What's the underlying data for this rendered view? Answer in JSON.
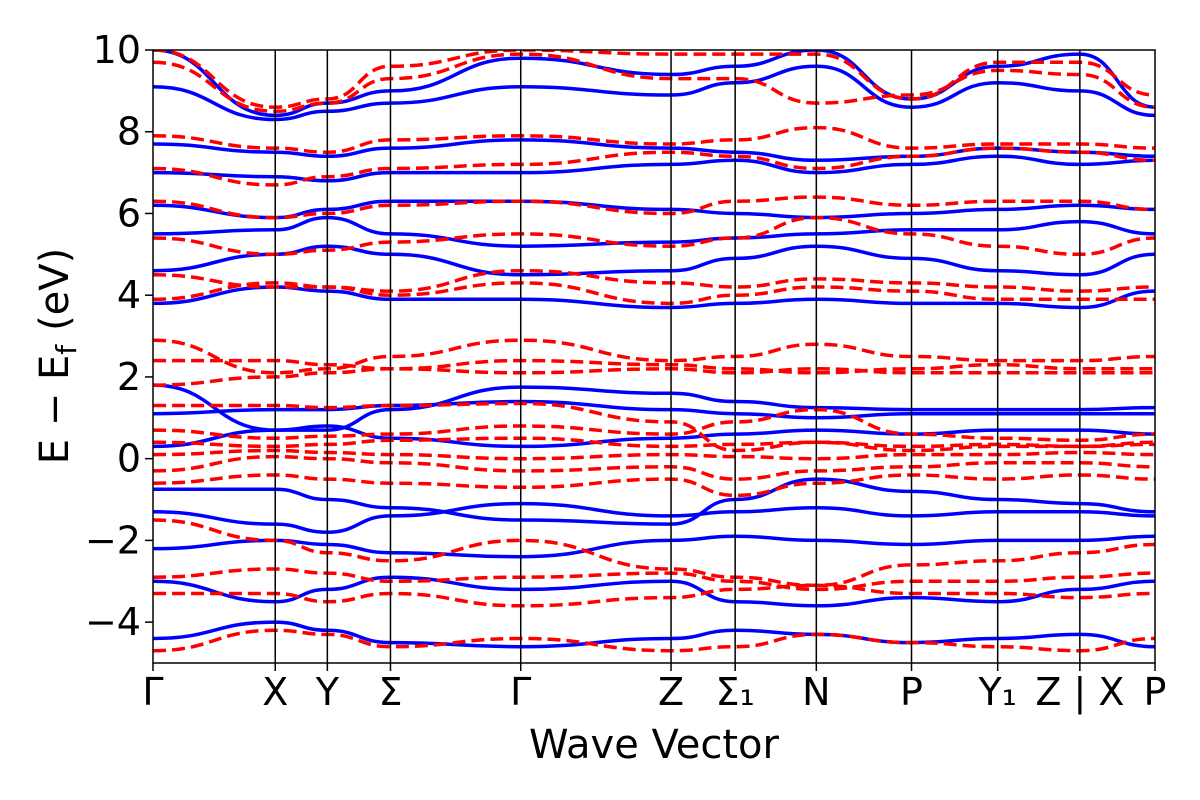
{
  "chart_data": {
    "type": "line",
    "title": "",
    "xlabel": "Wave Vector",
    "ylabel": "E − E",
    "ylabel_subscript": "f",
    "ylabel_unit": "(eV)",
    "ylim": [
      -5,
      10
    ],
    "yticks": [
      -4,
      -2,
      0,
      2,
      4,
      6,
      8,
      10
    ],
    "ytick_labels": [
      "−4",
      "−2",
      "0",
      "2",
      "4",
      "6",
      "8",
      "10"
    ],
    "grid": false,
    "legend": "none",
    "xlim": [
      0,
      1
    ],
    "kpoints": [
      {
        "label": "Γ",
        "x": 0.0
      },
      {
        "label": "X",
        "x": 0.122
      },
      {
        "label": "Y",
        "x": 0.174
      },
      {
        "label": "Σ",
        "x": 0.237
      },
      {
        "label": "Γ",
        "x": 0.367
      },
      {
        "label": "Z",
        "x": 0.517
      },
      {
        "label": "Σ₁",
        "x": 0.581
      },
      {
        "label": "N",
        "x": 0.662
      },
      {
        "label": "P",
        "x": 0.757
      },
      {
        "label": "Y₁",
        "x": 0.843
      },
      {
        "label": "Z | X",
        "x": 0.925
      },
      {
        "label": "P",
        "x": 1.0
      }
    ],
    "colors": {
      "solid": "#0000ff",
      "dashed": "#ff0000"
    },
    "series": [
      {
        "style": "solid",
        "y": [
          -2.2,
          -2.0,
          -2.1,
          -2.3,
          -2.4,
          -2.0,
          -1.9,
          -2.0,
          -2.1,
          -2.0,
          -2.0,
          -1.9
        ]
      },
      {
        "style": "solid",
        "y": [
          -1.3,
          -1.6,
          -1.8,
          -1.4,
          -1.1,
          -1.4,
          -1.3,
          -1.2,
          -1.4,
          -1.3,
          -1.3,
          -1.4
        ]
      },
      {
        "style": "solid",
        "y": [
          -0.75,
          -0.75,
          -1.0,
          -1.2,
          -1.5,
          -1.6,
          -1.0,
          -0.5,
          -0.8,
          -1.0,
          -1.1,
          -1.3
        ]
      },
      {
        "style": "solid",
        "y": [
          0.3,
          0.7,
          0.8,
          0.5,
          0.3,
          0.5,
          0.6,
          0.7,
          0.6,
          0.7,
          0.7,
          0.6
        ]
      },
      {
        "style": "solid",
        "y": [
          1.1,
          1.2,
          1.2,
          1.3,
          1.4,
          1.2,
          1.1,
          1.0,
          1.1,
          1.1,
          1.1,
          1.1
        ]
      },
      {
        "style": "solid",
        "y": [
          1.8,
          0.7,
          0.7,
          1.2,
          1.75,
          1.6,
          1.4,
          1.25,
          1.2,
          1.2,
          1.2,
          1.25
        ]
      },
      {
        "style": "solid",
        "y": [
          -3.0,
          -3.5,
          -3.2,
          -2.9,
          -3.2,
          -3.0,
          -3.5,
          -3.6,
          -3.4,
          -3.5,
          -3.2,
          -3.0
        ]
      },
      {
        "style": "solid",
        "y": [
          -4.4,
          -4.0,
          -4.2,
          -4.5,
          -4.6,
          -4.4,
          -4.2,
          -4.3,
          -4.5,
          -4.4,
          -4.3,
          -4.6
        ]
      },
      {
        "style": "solid",
        "y": [
          3.8,
          4.2,
          4.1,
          3.9,
          3.9,
          3.7,
          3.8,
          3.9,
          3.8,
          3.8,
          3.7,
          4.1
        ]
      },
      {
        "style": "solid",
        "y": [
          4.6,
          5.0,
          5.2,
          5.0,
          4.5,
          4.6,
          4.9,
          5.2,
          4.9,
          4.6,
          4.5,
          5.0
        ]
      },
      {
        "style": "solid",
        "y": [
          5.5,
          5.6,
          5.9,
          5.5,
          5.2,
          5.3,
          5.4,
          5.5,
          5.6,
          5.6,
          5.8,
          5.5
        ]
      },
      {
        "style": "solid",
        "y": [
          6.2,
          5.9,
          6.1,
          6.3,
          6.3,
          6.1,
          6.0,
          5.9,
          6.0,
          6.1,
          6.2,
          6.1
        ]
      },
      {
        "style": "solid",
        "y": [
          7.0,
          6.9,
          6.8,
          7.0,
          7.0,
          7.2,
          7.3,
          7.0,
          7.2,
          7.4,
          7.2,
          7.3
        ]
      },
      {
        "style": "solid",
        "y": [
          7.7,
          7.5,
          7.4,
          7.6,
          7.8,
          7.6,
          7.5,
          7.3,
          7.4,
          7.6,
          7.5,
          7.4
        ]
      },
      {
        "style": "solid",
        "y": [
          9.1,
          8.3,
          8.5,
          8.7,
          9.1,
          8.9,
          9.2,
          9.6,
          8.6,
          9.2,
          9.0,
          8.4
        ]
      },
      {
        "style": "solid",
        "y": [
          10.0,
          8.4,
          8.7,
          9.0,
          9.8,
          9.4,
          9.6,
          10.0,
          8.8,
          9.6,
          9.9,
          8.6
        ]
      },
      {
        "style": "dashed",
        "y": [
          0.1,
          0.2,
          0.15,
          0.1,
          0.0,
          0.1,
          0.05,
          0.0,
          0.1,
          0.1,
          0.15,
          0.1
        ]
      },
      {
        "style": "dashed",
        "y": [
          -0.3,
          0.05,
          0.0,
          -0.1,
          -0.3,
          -0.2,
          -0.5,
          -0.3,
          -0.2,
          -0.1,
          -0.1,
          -0.2
        ]
      },
      {
        "style": "dashed",
        "y": [
          0.4,
          0.3,
          0.35,
          0.45,
          0.5,
          0.3,
          0.35,
          0.4,
          0.3,
          0.35,
          0.3,
          0.4
        ]
      },
      {
        "style": "dashed",
        "y": [
          -0.6,
          -0.4,
          -0.5,
          -0.6,
          -0.7,
          -0.5,
          -0.9,
          -0.6,
          -0.4,
          -0.5,
          -0.4,
          -0.5
        ]
      },
      {
        "style": "dashed",
        "y": [
          0.7,
          0.5,
          0.55,
          0.6,
          0.8,
          0.6,
          0.9,
          1.2,
          0.6,
          0.5,
          0.45,
          0.6
        ]
      },
      {
        "style": "dashed",
        "y": [
          1.3,
          1.3,
          1.25,
          1.3,
          1.35,
          0.9,
          0.2,
          0.4,
          0.2,
          0.3,
          0.3,
          0.35
        ]
      },
      {
        "style": "dashed",
        "y": [
          2.9,
          2.1,
          2.2,
          2.5,
          2.9,
          2.4,
          2.5,
          2.8,
          2.5,
          2.4,
          2.4,
          2.5
        ]
      },
      {
        "style": "dashed",
        "y": [
          2.4,
          2.4,
          2.3,
          2.2,
          2.4,
          2.3,
          2.2,
          2.1,
          2.2,
          2.3,
          2.2,
          2.2
        ]
      },
      {
        "style": "dashed",
        "y": [
          1.8,
          2.0,
          2.1,
          2.2,
          2.1,
          2.2,
          2.1,
          2.2,
          2.1,
          2.1,
          2.1,
          2.1
        ]
      },
      {
        "style": "dashed",
        "y": [
          -3.3,
          -3.3,
          -3.5,
          -3.3,
          -3.6,
          -3.4,
          -3.2,
          -3.1,
          -3.3,
          -3.3,
          -3.4,
          -3.3
        ]
      },
      {
        "style": "dashed",
        "y": [
          -2.9,
          -2.7,
          -2.8,
          -3.0,
          -2.9,
          -2.8,
          -3.0,
          -3.2,
          -3.0,
          -3.0,
          -2.9,
          -2.8
        ]
      },
      {
        "style": "dashed",
        "y": [
          -4.7,
          -4.2,
          -4.3,
          -4.6,
          -4.4,
          -4.7,
          -4.6,
          -4.3,
          -4.5,
          -4.6,
          -4.7,
          -4.4
        ]
      },
      {
        "style": "dashed",
        "y": [
          -1.5,
          -2.0,
          -2.3,
          -2.5,
          -2.0,
          -2.7,
          -2.9,
          -3.1,
          -2.6,
          -2.5,
          -2.3,
          -2.1
        ]
      },
      {
        "style": "dashed",
        "y": [
          4.5,
          4.2,
          4.2,
          4.1,
          4.6,
          4.3,
          4.2,
          4.4,
          4.3,
          4.2,
          4.1,
          4.2
        ]
      },
      {
        "style": "dashed",
        "y": [
          3.9,
          4.3,
          4.2,
          4.0,
          4.3,
          3.8,
          4.0,
          4.2,
          4.1,
          3.9,
          3.9,
          3.9
        ]
      },
      {
        "style": "dashed",
        "y": [
          5.4,
          5.0,
          5.1,
          5.3,
          5.5,
          5.2,
          5.4,
          5.9,
          5.5,
          5.2,
          5.0,
          5.4
        ]
      },
      {
        "style": "dashed",
        "y": [
          6.3,
          5.9,
          6.0,
          6.2,
          6.3,
          6.0,
          6.3,
          6.4,
          6.2,
          6.3,
          6.3,
          6.1
        ]
      },
      {
        "style": "dashed",
        "y": [
          7.1,
          6.7,
          6.9,
          7.1,
          7.2,
          7.5,
          7.4,
          7.1,
          7.4,
          7.6,
          7.5,
          7.3
        ]
      },
      {
        "style": "dashed",
        "y": [
          7.9,
          7.6,
          7.5,
          7.8,
          7.9,
          7.7,
          7.8,
          8.1,
          7.6,
          7.7,
          7.7,
          7.6
        ]
      },
      {
        "style": "dashed",
        "y": [
          9.7,
          8.5,
          8.7,
          9.3,
          9.9,
          9.3,
          9.3,
          8.7,
          8.9,
          9.5,
          9.4,
          8.6
        ]
      },
      {
        "style": "dashed",
        "y": [
          10.0,
          8.6,
          8.8,
          9.6,
          10.0,
          9.9,
          9.9,
          9.9,
          8.8,
          9.7,
          9.7,
          8.9
        ]
      }
    ]
  }
}
